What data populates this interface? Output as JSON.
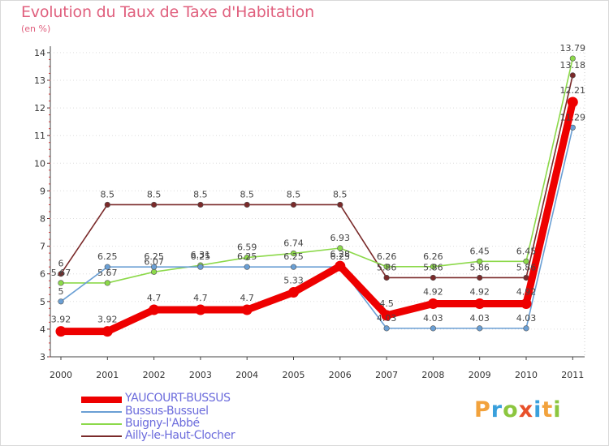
{
  "title": "Evolution du Taux de Taxe d'Habitation",
  "subtitle": "(en %)",
  "logo": {
    "text": "Proxiti",
    "colors": [
      "#f2a23c",
      "#3aa0dc",
      "#8cc63f",
      "#e8502a",
      "#3aa0dc",
      "#f2a23c",
      "#8cc63f"
    ]
  },
  "chart_data": {
    "type": "line",
    "title": "Evolution du Taux de Taxe d'Habitation",
    "ylabel": "(en %)",
    "xlabel": "",
    "ylim": [
      3,
      14
    ],
    "yticks": [
      3,
      4,
      5,
      6,
      7,
      8,
      9,
      10,
      11,
      12,
      13,
      14
    ],
    "categories": [
      "2000",
      "2001",
      "2002",
      "2003",
      "2004",
      "2005",
      "2006",
      "2007",
      "2008",
      "2009",
      "2010",
      "2011"
    ],
    "series": [
      {
        "name": "YAUCOURT-BUSSUS",
        "color": "#ee0000",
        "values": [
          3.92,
          3.92,
          4.7,
          4.7,
          4.7,
          5.33,
          6.28,
          4.5,
          4.92,
          4.92,
          4.92,
          12.21
        ],
        "labels": [
          "3.92",
          "3.92",
          "4.7",
          "4.7",
          "4.7",
          "5.33",
          "6.28",
          "4.5",
          "4.92",
          "4.92",
          "4.92",
          "12.21"
        ]
      },
      {
        "name": "Bussus-Bussuel",
        "color": "#6a9fd4",
        "values": [
          5,
          6.25,
          6.25,
          6.25,
          6.25,
          6.25,
          6.25,
          4.03,
          4.03,
          4.03,
          4.03,
          11.29
        ],
        "labels": [
          "5",
          "6.25",
          "6.25",
          "6.25",
          "6.25",
          "6.25",
          "6.25",
          "4.03",
          "4.03",
          "4.03",
          "4.03",
          "11.29"
        ]
      },
      {
        "name": "Buigny-l'Abbé",
        "color": "#8cd94a",
        "values": [
          5.67,
          5.67,
          6.07,
          6.31,
          6.59,
          6.74,
          6.93,
          6.26,
          6.26,
          6.45,
          6.45,
          13.79
        ],
        "labels": [
          "5.67",
          "5.67",
          "6.07",
          "6.31",
          "6.59",
          "6.74",
          "6.93",
          "6.26",
          "6.26",
          "6.45",
          "6.45",
          "13.79"
        ]
      },
      {
        "name": "Ailly-le-Haut-Clocher",
        "color": "#7a2a2a",
        "values": [
          6,
          8.5,
          8.5,
          8.5,
          8.5,
          8.5,
          8.5,
          5.86,
          5.86,
          5.86,
          5.86,
          13.18
        ],
        "labels": [
          "6",
          "8.5",
          "8.5",
          "8.5",
          "8.5",
          "8.5",
          "8.5",
          "5.86",
          "5.86",
          "5.86",
          "5.86",
          "13.18"
        ]
      }
    ],
    "legend_position": "bottom-left"
  }
}
